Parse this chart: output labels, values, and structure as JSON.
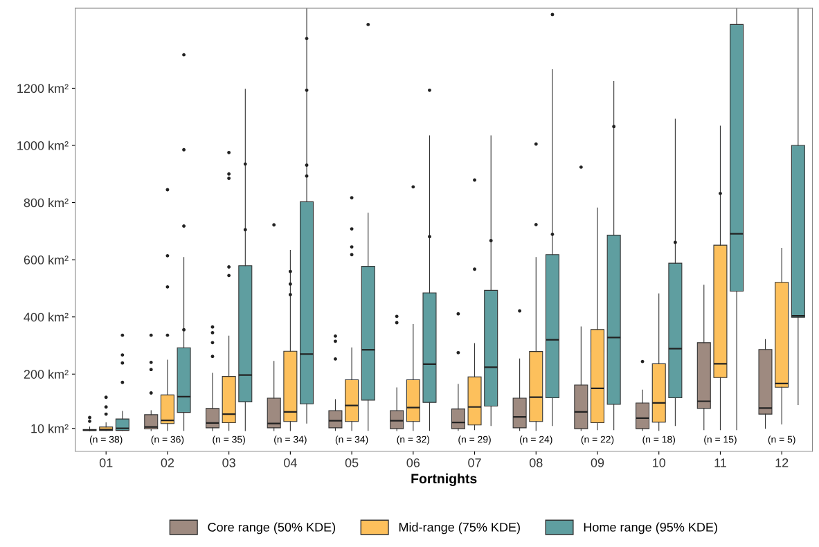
{
  "chart_data": {
    "type": "box",
    "xlabel": "Fortnights",
    "categories": [
      "01",
      "02",
      "03",
      "04",
      "05",
      "06",
      "07",
      "08",
      "09",
      "10",
      "11",
      "12"
    ],
    "ylim": [
      -70,
      1480
    ],
    "yticks": [
      {
        "value": 10,
        "label": "10 km²"
      },
      {
        "value": 200,
        "label": "200 km²"
      },
      {
        "value": 400,
        "label": "400 km²"
      },
      {
        "value": 600,
        "label": "600 km²"
      },
      {
        "value": 800,
        "label": "800 km²"
      },
      {
        "value": 1000,
        "label": "1000 km²"
      },
      {
        "value": 1200,
        "label": "1200 km²"
      }
    ],
    "grid": false,
    "legend": "bottom",
    "series": [
      {
        "name": "Core range (50% KDE)",
        "color": "#9e8a80",
        "boxes": [
          {
            "low": 2,
            "q1": 3,
            "median": 4,
            "q3": 6,
            "high": 15,
            "outliers": [
              48,
              35
            ]
          },
          {
            "low": 2,
            "q1": 8,
            "median": 15,
            "q3": 58,
            "high": 72,
            "outliers": [
              336,
              241,
              216,
              134
            ]
          },
          {
            "low": 2,
            "q1": 12,
            "median": 29,
            "q3": 80,
            "high": 203,
            "outliers": [
              365,
              345,
              310,
              262
            ]
          },
          {
            "low": 2,
            "q1": 12,
            "median": 27,
            "q3": 116,
            "high": 245,
            "outliers": [
              722
            ]
          },
          {
            "low": 3,
            "q1": 12,
            "median": 37,
            "q3": 72,
            "high": 111,
            "outliers": [
              333,
              315,
              253
            ]
          },
          {
            "low": 2,
            "q1": 9,
            "median": 37,
            "q3": 72,
            "high": 152,
            "outliers": [
              402,
              380
            ]
          },
          {
            "low": 3,
            "q1": 9,
            "median": 31,
            "q3": 78,
            "high": 164,
            "outliers": [
              411,
              275
            ]
          },
          {
            "low": 3,
            "q1": 12,
            "median": 50,
            "q3": 116,
            "high": 253,
            "outliers": [
              421
            ]
          },
          {
            "low": 3,
            "q1": 9,
            "median": 68,
            "q3": 162,
            "high": 365,
            "outliers": [
              924
            ]
          },
          {
            "low": 3,
            "q1": 9,
            "median": 46,
            "q3": 99,
            "high": 144,
            "outliers": [
              244
            ]
          },
          {
            "low": 5,
            "q1": 80,
            "median": 105,
            "q3": 310,
            "high": 511
          },
          {
            "low": 10,
            "q1": 60,
            "median": 81,
            "q3": 286,
            "high": 321
          }
        ]
      },
      {
        "name": "Mid-range (75% KDE)",
        "color": "#fdc05c",
        "boxes": [
          {
            "low": 3,
            "q1": 3,
            "median": 6,
            "q3": 15,
            "high": 30,
            "outliers": [
              119,
              85,
              60
            ]
          },
          {
            "low": 3,
            "q1": 27,
            "median": 38,
            "q3": 127,
            "high": 249,
            "outliers": [
              845,
              614,
              505,
              336
            ]
          },
          {
            "low": 3,
            "q1": 30,
            "median": 60,
            "q3": 192,
            "high": 333,
            "outliers": [
              975,
              900,
              885,
              575,
              545
            ]
          },
          {
            "low": 2,
            "q1": 34,
            "median": 68,
            "q3": 280,
            "high": 633,
            "outliers": [
              559,
              515,
              478
            ]
          },
          {
            "low": 3,
            "q1": 34,
            "median": 90,
            "q3": 180,
            "high": 292,
            "outliers": [
              817,
              708,
              645,
              618
            ]
          },
          {
            "low": 3,
            "q1": 34,
            "median": 83,
            "q3": 180,
            "high": 374,
            "outliers": [
              855
            ]
          },
          {
            "low": 5,
            "q1": 22,
            "median": 85,
            "q3": 190,
            "high": 307,
            "outliers": [
              879,
              567
            ]
          },
          {
            "low": 3,
            "q1": 34,
            "median": 119,
            "q3": 279,
            "high": 608,
            "outliers": [
              1005,
              723
            ]
          },
          {
            "low": 5,
            "q1": 30,
            "median": 150,
            "q3": 356,
            "high": 781
          },
          {
            "low": 3,
            "q1": 32,
            "median": 99,
            "q3": 236,
            "high": 481
          },
          {
            "low": 5,
            "q1": 188,
            "median": 236,
            "q3": 651,
            "high": 1068,
            "outliers": [
              832
            ]
          },
          {
            "low": 25,
            "q1": 154,
            "median": 167,
            "q3": 521,
            "high": 640
          }
        ]
      },
      {
        "name": "Home range (95% KDE)",
        "color": "#5f9ea0",
        "boxes": [
          {
            "low": 3,
            "q1": 3,
            "median": 10,
            "q3": 43,
            "high": 70,
            "outliers": [
              336,
              267,
              239,
              171
            ]
          },
          {
            "low": 3,
            "q1": 66,
            "median": 121,
            "q3": 292,
            "high": 608,
            "outliers": [
              1317,
              985,
              718,
              355
            ]
          },
          {
            "low": 2,
            "q1": 103,
            "median": 197,
            "q3": 579,
            "high": 1197,
            "outliers": [
              935,
              705
            ]
          },
          {
            "low": 28,
            "q1": 96,
            "median": 270,
            "q3": 803,
            "high": 1480,
            "outliers": [
              1374,
              1193,
              931,
              893
            ]
          },
          {
            "low": 3,
            "q1": 109,
            "median": 285,
            "q3": 577,
            "high": 763,
            "outliers": [
              1423
            ]
          },
          {
            "low": 3,
            "q1": 101,
            "median": 235,
            "q3": 484,
            "high": 1034,
            "outliers": [
              1193,
              681
            ]
          },
          {
            "low": 20,
            "q1": 88,
            "median": 224,
            "q3": 493,
            "high": 1034,
            "outliers": [
              667
            ]
          },
          {
            "low": 20,
            "q1": 117,
            "median": 320,
            "q3": 618,
            "high": 1265,
            "outliers": [
              1458,
              689
            ]
          },
          {
            "low": 5,
            "q1": 94,
            "median": 328,
            "q3": 686,
            "high": 1224,
            "outliers": [
              1066
            ]
          },
          {
            "low": 20,
            "q1": 117,
            "median": 289,
            "q3": 588,
            "high": 1092,
            "outliers": [
              661
            ]
          },
          {
            "low": 5,
            "q1": 490,
            "median": 691,
            "q3": 1423,
            "high": 1480
          },
          {
            "low": 93,
            "q1": 399,
            "median": 404,
            "q3": 1000,
            "high": 1480
          }
        ]
      }
    ],
    "annotations": [
      "(n = 38)",
      "(n = 36)",
      "(n = 35)",
      "(n = 34)",
      "(n = 34)",
      "(n = 32)",
      "(n = 29)",
      "(n = 24)",
      "(n = 22)",
      "(n = 18)",
      "(n = 15)",
      "(n = 5)"
    ]
  }
}
